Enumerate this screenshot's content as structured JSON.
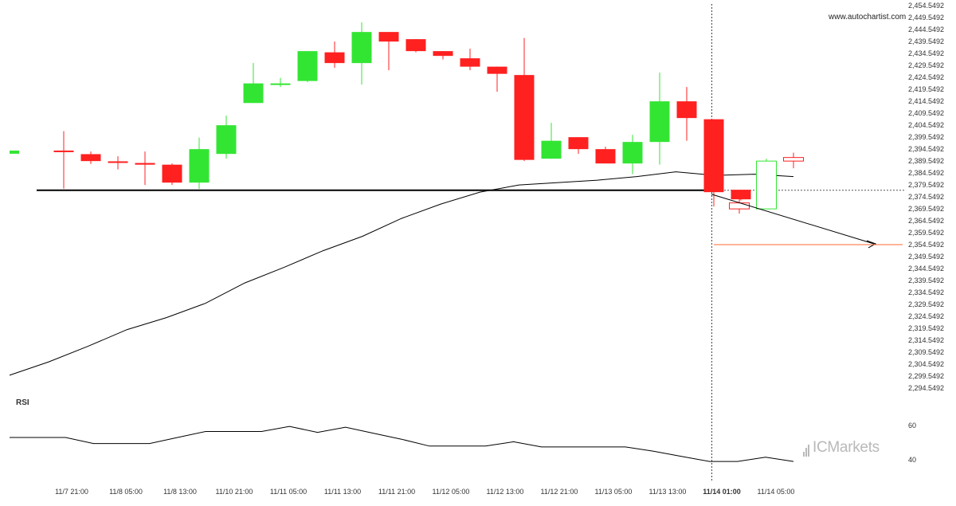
{
  "source_label": "www.autochartist.com",
  "watermark": {
    "text": "ICMarkets",
    "icon": "ic-markets-bars-icon",
    "color": "#b9b9b9"
  },
  "colors": {
    "up": "#33e533",
    "down": "#ff2020",
    "line": "#000000",
    "forecast": "#ff6a30",
    "crosshair": "#444444"
  },
  "chart_data": [
    {
      "type": "candlestick",
      "title": "",
      "y_min": 2294.5492,
      "y_max": 2454.5492,
      "y_step": 5,
      "y_tick_format": "thousands-comma-4dp",
      "y_tick_example": "2,454.5492",
      "x_tick_labels": [
        {
          "index": 1,
          "label": "11/7 21:00"
        },
        {
          "index": 3,
          "label": "11/8 05:00"
        },
        {
          "index": 5,
          "label": "11/8 13:00"
        },
        {
          "index": 7,
          "label": "11/10 21:00"
        },
        {
          "index": 9,
          "label": "11/11 05:00"
        },
        {
          "index": 11,
          "label": "11/11 13:00"
        },
        {
          "index": 13,
          "label": "11/11 21:00"
        },
        {
          "index": 15,
          "label": "11/12 05:00"
        },
        {
          "index": 17,
          "label": "11/12 13:00"
        },
        {
          "index": 19,
          "label": "11/12 21:00"
        },
        {
          "index": 21,
          "label": "11/13 05:00"
        },
        {
          "index": 23,
          "label": "11/13 13:00"
        },
        {
          "index": 25,
          "label": "11/14 01:00",
          "bold": true
        },
        {
          "index": 27,
          "label": "11/14 05:00"
        }
      ],
      "candles": [
        {
          "o": 2392.8,
          "h": 2393.5,
          "l": 2391.5,
          "c": 2393.9,
          "dir": "up"
        },
        {
          "o": 2393.9,
          "h": 2402.0,
          "l": 2378.0,
          "c": 2393.4,
          "dir": "down"
        },
        {
          "o": 2392.4,
          "h": 2393.5,
          "l": 2388.3,
          "c": 2389.5,
          "dir": "down"
        },
        {
          "o": 2389.4,
          "h": 2391.5,
          "l": 2386.0,
          "c": 2389.0,
          "dir": "down"
        },
        {
          "o": 2388.7,
          "h": 2393.5,
          "l": 2379.5,
          "c": 2388.0,
          "dir": "down"
        },
        {
          "o": 2388.0,
          "h": 2388.5,
          "l": 2379.5,
          "c": 2380.5,
          "dir": "down"
        },
        {
          "o": 2380.5,
          "h": 2399.3,
          "l": 2377.9,
          "c": 2394.5,
          "dir": "up"
        },
        {
          "o": 2392.5,
          "h": 2408.5,
          "l": 2390.5,
          "c": 2404.5,
          "dir": "up"
        },
        {
          "o": 2413.8,
          "h": 2430.5,
          "l": 2413.8,
          "c": 2422.0,
          "dir": "up"
        },
        {
          "o": 2421.5,
          "h": 2424.3,
          "l": 2420.5,
          "c": 2422.0,
          "dir": "up"
        },
        {
          "o": 2423.0,
          "h": 2435.5,
          "l": 2422.5,
          "c": 2435.5,
          "dir": "up"
        },
        {
          "o": 2435.0,
          "h": 2439.5,
          "l": 2428.5,
          "c": 2430.5,
          "dir": "down"
        },
        {
          "o": 2430.5,
          "h": 2447.5,
          "l": 2421.5,
          "c": 2443.5,
          "dir": "up"
        },
        {
          "o": 2443.5,
          "h": 2443.5,
          "l": 2427.5,
          "c": 2439.5,
          "dir": "down"
        },
        {
          "o": 2440.5,
          "h": 2440.5,
          "l": 2435.0,
          "c": 2435.5,
          "dir": "down"
        },
        {
          "o": 2435.5,
          "h": 2435.5,
          "l": 2432.0,
          "c": 2433.5,
          "dir": "down"
        },
        {
          "o": 2432.5,
          "h": 2436.5,
          "l": 2427.5,
          "c": 2429.0,
          "dir": "down"
        },
        {
          "o": 2429.0,
          "h": 2429.0,
          "l": 2418.5,
          "c": 2426.0,
          "dir": "down"
        },
        {
          "o": 2425.5,
          "h": 2441.0,
          "l": 2389.5,
          "c": 2390.0,
          "dir": "down"
        },
        {
          "o": 2390.5,
          "h": 2405.5,
          "l": 2390.5,
          "c": 2398.0,
          "dir": "up"
        },
        {
          "o": 2399.5,
          "h": 2399.5,
          "l": 2392.5,
          "c": 2394.5,
          "dir": "down"
        },
        {
          "o": 2394.5,
          "h": 2395.5,
          "l": 2388.5,
          "c": 2388.5,
          "dir": "down"
        },
        {
          "o": 2388.5,
          "h": 2400.5,
          "l": 2384.0,
          "c": 2397.5,
          "dir": "up"
        },
        {
          "o": 2397.5,
          "h": 2426.5,
          "l": 2388.0,
          "c": 2414.5,
          "dir": "up"
        },
        {
          "o": 2414.5,
          "h": 2420.5,
          "l": 2398.0,
          "c": 2407.5,
          "dir": "down"
        },
        {
          "o": 2407.0,
          "h": 2407.0,
          "l": 2370.5,
          "c": 2376.5,
          "dir": "down"
        },
        {
          "o": 2377.5,
          "h": 2377.5,
          "l": 2373.0,
          "c": 2373.5,
          "dir": "down"
        },
        {
          "o": "",
          "h": "",
          "l": "",
          "c": "",
          "dir": "down",
          "hollow": true
        }
      ],
      "pattern_candles": [
        {
          "o": 2372.0,
          "h": 2374.0,
          "l": 2367.5,
          "c": 2369.5,
          "dir": "down",
          "hollow": true
        },
        {
          "o": 2369.5,
          "h": 2390.5,
          "l": 2369.5,
          "c": 2389.5,
          "dir": "up",
          "hollow": true
        },
        {
          "o": 2391.0,
          "h": 2393.0,
          "l": 2386.5,
          "c": 2389.5,
          "dir": "down",
          "hollow": true
        }
      ],
      "moving_average": [
        2299.9,
        2305.5,
        2312.0,
        2319.0,
        2324.0,
        2330.0,
        2338.5,
        2345.0,
        2352.0,
        2358.0,
        2365.5,
        2371.5,
        2376.5,
        2379.5,
        2380.5,
        2381.5,
        2383.0,
        2385.0,
        2383.5,
        2384.0,
        2383.0
      ],
      "support_level": 2377.3,
      "projection_target": 2354.55,
      "rsi": {
        "label": "RSI",
        "ticks": [
          60,
          40
        ],
        "values": [
          53,
          53,
          53,
          49.5,
          49.5,
          49.5,
          53,
          56.5,
          56.5,
          56.5,
          59.5,
          56,
          59,
          55.5,
          52,
          48,
          48,
          48,
          50.5,
          47.5,
          47.5,
          47.5,
          47.5,
          45,
          42,
          39,
          39,
          41.5,
          39
        ]
      }
    }
  ]
}
